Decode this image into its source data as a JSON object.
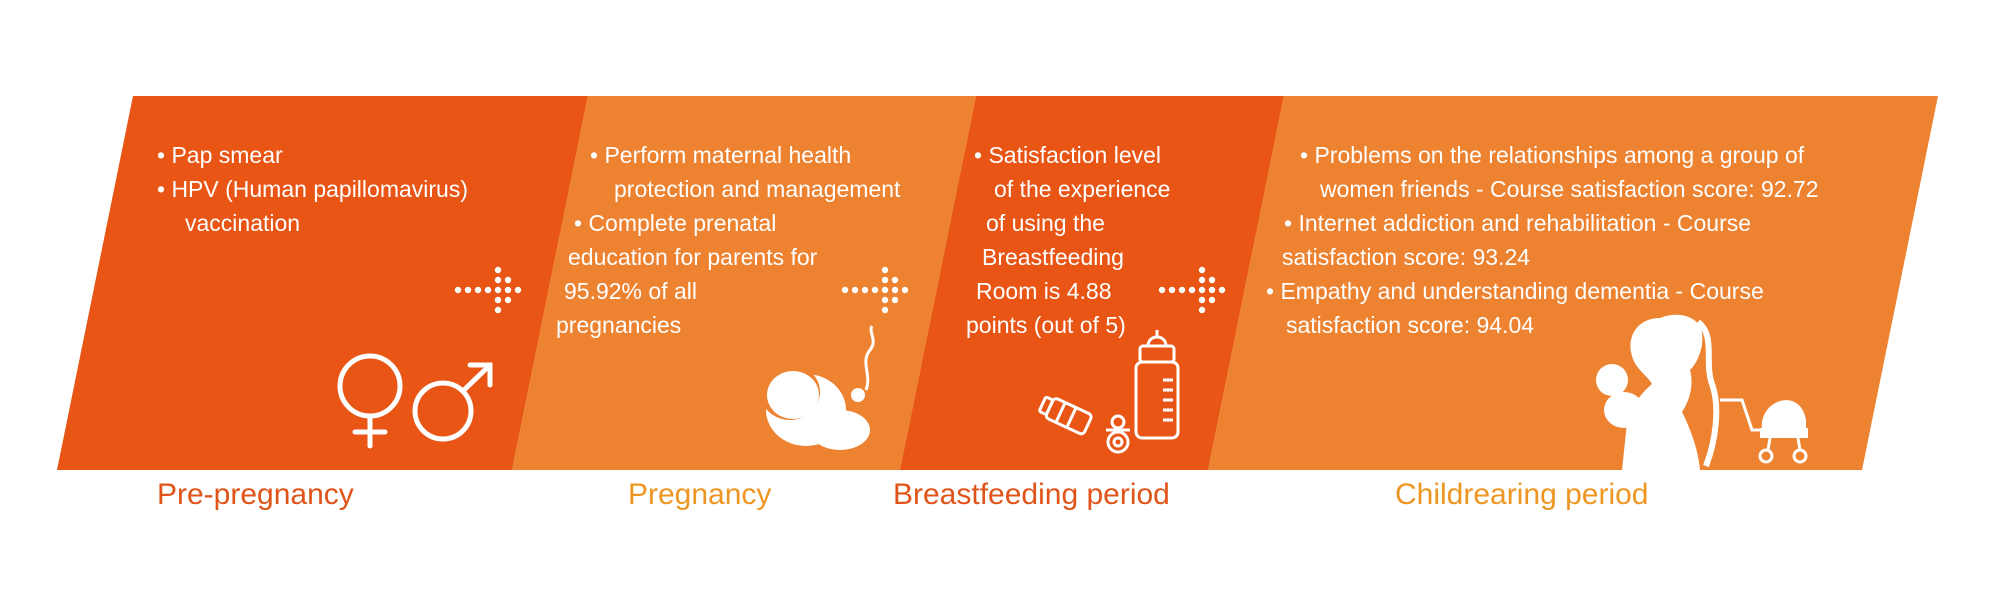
{
  "colors": {
    "dark_orange": "#E85514",
    "light_orange": "#ED8230",
    "label_red": "#E0541A",
    "label_amber": "#EE9622",
    "white": "#FFFFFF"
  },
  "stages": [
    {
      "title": "Pre-pregnancy",
      "lines": [
        "• Pap smear",
        "• HPV (Human papillomavirus)",
        "vaccination"
      ],
      "icon": "female-male-symbols-icon"
    },
    {
      "title": "Pregnancy",
      "lines": [
        "• Perform maternal health",
        "protection and management",
        "• Complete prenatal",
        "education for parents for",
        "95.92% of all",
        "pregnancies"
      ],
      "icon": "fetus-icon"
    },
    {
      "title": "Breastfeeding period",
      "lines": [
        "• Satisfaction level",
        "of the experience",
        "of using the",
        "Breastfeeding",
        "Room is 4.88",
        "points (out of 5)"
      ],
      "icon": "baby-bottle-pacifier-icon"
    },
    {
      "title": "Childrearing period",
      "lines": [
        "• Problems on the relationships among a group of",
        "women friends - Course satisfaction score: 92.72",
        "• Internet addiction and rehabilitation - Course",
        "satisfaction score: 93.24",
        "• Empathy and understanding dementia - Course",
        "satisfaction score: 94.04"
      ],
      "icon": "mother-child-stroller-icon"
    }
  ]
}
